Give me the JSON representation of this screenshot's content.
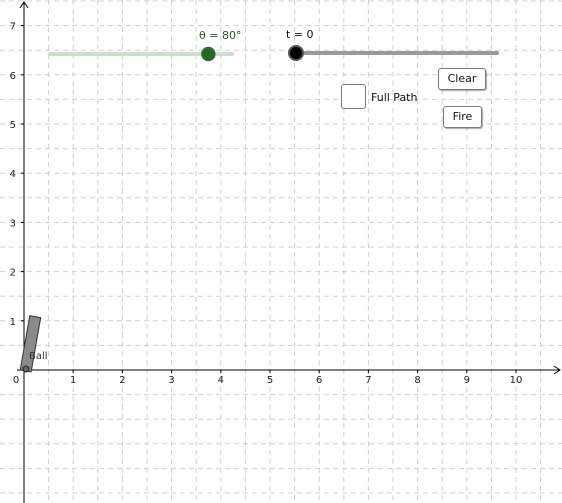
{
  "graph": {
    "x_ticks": [
      "0",
      "1",
      "2",
      "3",
      "4",
      "5",
      "6",
      "7",
      "8",
      "9",
      "10"
    ],
    "y_ticks": [
      "1",
      "2",
      "3",
      "4",
      "5",
      "6",
      "7"
    ],
    "grid_color": "#d0d0d0",
    "axis_color": "#000000"
  },
  "sliders": {
    "theta": {
      "label": "θ = 80°",
      "value_degrees": 80,
      "fraction": 0.87,
      "color": "#1b6e1b",
      "track_color": "#c9e1c9"
    },
    "time": {
      "label": "t = 0",
      "value": 0,
      "fraction": 0.0,
      "color": "#000000",
      "track_color": "#9a9a9a"
    }
  },
  "controls": {
    "full_path_label": "Full Path",
    "full_path_checked": false,
    "clear_label": "Clear",
    "fire_label": "Fire"
  },
  "cannon": {
    "angle_degrees": 80,
    "ball_label": "Ball",
    "color": "#8a8a8a"
  }
}
